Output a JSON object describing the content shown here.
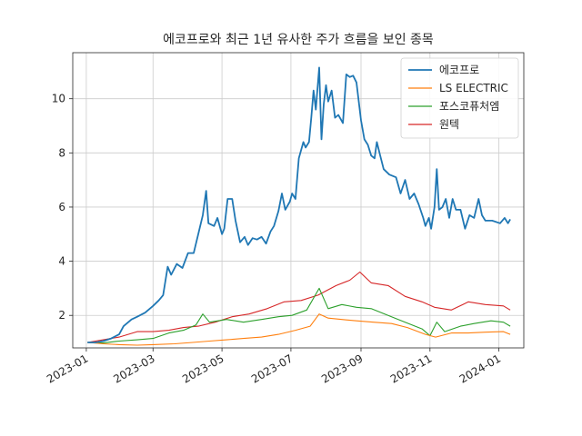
{
  "chart_data": {
    "type": "line",
    "title": "에코프로와 최근 1년 유사한 주가 흐름을 보인 종목",
    "xlabel": "",
    "ylabel": "",
    "x_tick_labels": [
      "2023-01",
      "2023-03",
      "2023-05",
      "2023-07",
      "2023-09",
      "2023-11",
      "2024-01"
    ],
    "x_ticks": [
      "2023-01-01",
      "2023-03-01",
      "2023-05-01",
      "2023-07-01",
      "2023-09-01",
      "2023-11-01",
      "2024-01-01"
    ],
    "x_range": [
      "2022-12-20",
      "2024-01-23"
    ],
    "y_ticks": [
      2,
      4,
      6,
      8,
      10
    ],
    "ylim": [
      0.8,
      11.7
    ],
    "grid": true,
    "legend_position": "top-right",
    "series": [
      {
        "name": "에코프로",
        "color": "#1f77b4",
        "points": [
          [
            "2023-01-02",
            1.0
          ],
          [
            "2023-01-09",
            1.0
          ],
          [
            "2023-01-16",
            1.05
          ],
          [
            "2023-01-23",
            1.15
          ],
          [
            "2023-01-30",
            1.3
          ],
          [
            "2023-02-03",
            1.6
          ],
          [
            "2023-02-10",
            1.85
          ],
          [
            "2023-02-15",
            1.95
          ],
          [
            "2023-02-22",
            2.1
          ],
          [
            "2023-03-01",
            2.35
          ],
          [
            "2023-03-06",
            2.55
          ],
          [
            "2023-03-10",
            2.75
          ],
          [
            "2023-03-14",
            3.8
          ],
          [
            "2023-03-17",
            3.5
          ],
          [
            "2023-03-22",
            3.9
          ],
          [
            "2023-03-27",
            3.75
          ],
          [
            "2023-04-01",
            4.3
          ],
          [
            "2023-04-06",
            4.3
          ],
          [
            "2023-04-10",
            5.0
          ],
          [
            "2023-04-14",
            5.7
          ],
          [
            "2023-04-17",
            6.6
          ],
          [
            "2023-04-19",
            5.4
          ],
          [
            "2023-04-24",
            5.3
          ],
          [
            "2023-04-27",
            5.6
          ],
          [
            "2023-05-01",
            5.0
          ],
          [
            "2023-05-03",
            5.2
          ],
          [
            "2023-05-06",
            6.3
          ],
          [
            "2023-05-10",
            6.3
          ],
          [
            "2023-05-13",
            5.5
          ],
          [
            "2023-05-17",
            4.7
          ],
          [
            "2023-05-21",
            4.9
          ],
          [
            "2023-05-24",
            4.6
          ],
          [
            "2023-05-28",
            4.85
          ],
          [
            "2023-06-01",
            4.8
          ],
          [
            "2023-06-05",
            4.9
          ],
          [
            "2023-06-09",
            4.65
          ],
          [
            "2023-06-13",
            5.1
          ],
          [
            "2023-06-16",
            5.3
          ],
          [
            "2023-06-20",
            5.85
          ],
          [
            "2023-06-23",
            6.5
          ],
          [
            "2023-06-26",
            5.9
          ],
          [
            "2023-06-30",
            6.2
          ],
          [
            "2023-07-02",
            6.5
          ],
          [
            "2023-07-05",
            6.3
          ],
          [
            "2023-07-08",
            7.8
          ],
          [
            "2023-07-12",
            8.4
          ],
          [
            "2023-07-14",
            8.2
          ],
          [
            "2023-07-17",
            8.4
          ],
          [
            "2023-07-19",
            9.3
          ],
          [
            "2023-07-21",
            10.3
          ],
          [
            "2023-07-23",
            9.6
          ],
          [
            "2023-07-26",
            11.15
          ],
          [
            "2023-07-28",
            8.5
          ],
          [
            "2023-07-30",
            9.8
          ],
          [
            "2023-08-01",
            10.5
          ],
          [
            "2023-08-03",
            9.9
          ],
          [
            "2023-08-06",
            10.3
          ],
          [
            "2023-08-09",
            9.3
          ],
          [
            "2023-08-12",
            9.4
          ],
          [
            "2023-08-16",
            9.1
          ],
          [
            "2023-08-19",
            10.9
          ],
          [
            "2023-08-22",
            10.8
          ],
          [
            "2023-08-25",
            10.85
          ],
          [
            "2023-08-28",
            10.6
          ],
          [
            "2023-09-01",
            9.2
          ],
          [
            "2023-09-04",
            8.5
          ],
          [
            "2023-09-07",
            8.3
          ],
          [
            "2023-09-10",
            7.9
          ],
          [
            "2023-09-13",
            7.8
          ],
          [
            "2023-09-15",
            8.4
          ],
          [
            "2023-09-18",
            7.9
          ],
          [
            "2023-09-21",
            7.4
          ],
          [
            "2023-09-26",
            7.2
          ],
          [
            "2023-10-02",
            7.1
          ],
          [
            "2023-10-06",
            6.5
          ],
          [
            "2023-10-10",
            7.0
          ],
          [
            "2023-10-14",
            6.3
          ],
          [
            "2023-10-18",
            6.5
          ],
          [
            "2023-10-22",
            6.1
          ],
          [
            "2023-10-26",
            5.6
          ],
          [
            "2023-10-28",
            5.3
          ],
          [
            "2023-10-31",
            5.6
          ],
          [
            "2023-11-02",
            5.2
          ],
          [
            "2023-11-05",
            6.0
          ],
          [
            "2023-11-07",
            7.4
          ],
          [
            "2023-11-09",
            5.9
          ],
          [
            "2023-11-12",
            6.0
          ],
          [
            "2023-11-15",
            6.3
          ],
          [
            "2023-11-18",
            5.6
          ],
          [
            "2023-11-21",
            6.3
          ],
          [
            "2023-11-24",
            5.9
          ],
          [
            "2023-11-28",
            5.9
          ],
          [
            "2023-12-02",
            5.2
          ],
          [
            "2023-12-06",
            5.7
          ],
          [
            "2023-12-10",
            5.6
          ],
          [
            "2023-12-14",
            6.3
          ],
          [
            "2023-12-17",
            5.7
          ],
          [
            "2023-12-20",
            5.5
          ],
          [
            "2023-12-26",
            5.5
          ],
          [
            "2024-01-02",
            5.4
          ],
          [
            "2024-01-06",
            5.6
          ],
          [
            "2024-01-09",
            5.4
          ],
          [
            "2024-01-11",
            5.55
          ]
        ]
      },
      {
        "name": "LS ELECTRIC",
        "color": "#ff7f0e",
        "points": [
          [
            "2023-01-02",
            1.0
          ],
          [
            "2023-01-16",
            0.95
          ],
          [
            "2023-01-30",
            0.92
          ],
          [
            "2023-02-15",
            0.9
          ],
          [
            "2023-03-01",
            0.92
          ],
          [
            "2023-03-20",
            0.95
          ],
          [
            "2023-04-05",
            1.0
          ],
          [
            "2023-04-20",
            1.05
          ],
          [
            "2023-05-05",
            1.1
          ],
          [
            "2023-05-20",
            1.15
          ],
          [
            "2023-06-05",
            1.2
          ],
          [
            "2023-06-20",
            1.3
          ],
          [
            "2023-07-05",
            1.45
          ],
          [
            "2023-07-18",
            1.6
          ],
          [
            "2023-07-26",
            2.05
          ],
          [
            "2023-08-03",
            1.9
          ],
          [
            "2023-08-15",
            1.85
          ],
          [
            "2023-08-28",
            1.8
          ],
          [
            "2023-09-12",
            1.75
          ],
          [
            "2023-09-28",
            1.7
          ],
          [
            "2023-10-12",
            1.55
          ],
          [
            "2023-10-28",
            1.3
          ],
          [
            "2023-11-06",
            1.2
          ],
          [
            "2023-11-20",
            1.35
          ],
          [
            "2023-12-05",
            1.35
          ],
          [
            "2023-12-20",
            1.38
          ],
          [
            "2024-01-05",
            1.4
          ],
          [
            "2024-01-11",
            1.3
          ]
        ]
      },
      {
        "name": "포스코퓨처엠",
        "color": "#2ca02c",
        "points": [
          [
            "2023-01-02",
            1.0
          ],
          [
            "2023-01-16",
            0.98
          ],
          [
            "2023-01-30",
            1.05
          ],
          [
            "2023-02-15",
            1.1
          ],
          [
            "2023-03-01",
            1.15
          ],
          [
            "2023-03-15",
            1.35
          ],
          [
            "2023-03-28",
            1.45
          ],
          [
            "2023-04-08",
            1.65
          ],
          [
            "2023-04-14",
            2.05
          ],
          [
            "2023-04-20",
            1.75
          ],
          [
            "2023-05-05",
            1.85
          ],
          [
            "2023-05-20",
            1.75
          ],
          [
            "2023-06-05",
            1.85
          ],
          [
            "2023-06-20",
            1.95
          ],
          [
            "2023-07-02",
            2.0
          ],
          [
            "2023-07-15",
            2.2
          ],
          [
            "2023-07-26",
            3.0
          ],
          [
            "2023-08-03",
            2.25
          ],
          [
            "2023-08-15",
            2.4
          ],
          [
            "2023-08-28",
            2.3
          ],
          [
            "2023-09-10",
            2.25
          ],
          [
            "2023-09-25",
            2.0
          ],
          [
            "2023-10-10",
            1.75
          ],
          [
            "2023-10-25",
            1.5
          ],
          [
            "2023-11-01",
            1.25
          ],
          [
            "2023-11-07",
            1.75
          ],
          [
            "2023-11-14",
            1.4
          ],
          [
            "2023-11-28",
            1.6
          ],
          [
            "2023-12-10",
            1.7
          ],
          [
            "2023-12-25",
            1.8
          ],
          [
            "2024-01-05",
            1.75
          ],
          [
            "2024-01-11",
            1.6
          ]
        ]
      },
      {
        "name": "원텍",
        "color": "#d62728",
        "points": [
          [
            "2023-01-02",
            1.0
          ],
          [
            "2023-01-16",
            1.1
          ],
          [
            "2023-01-30",
            1.2
          ],
          [
            "2023-02-15",
            1.4
          ],
          [
            "2023-03-01",
            1.4
          ],
          [
            "2023-03-15",
            1.45
          ],
          [
            "2023-03-28",
            1.55
          ],
          [
            "2023-04-10",
            1.6
          ],
          [
            "2023-04-25",
            1.75
          ],
          [
            "2023-05-10",
            1.95
          ],
          [
            "2023-05-25",
            2.05
          ],
          [
            "2023-06-10",
            2.25
          ],
          [
            "2023-06-25",
            2.5
          ],
          [
            "2023-07-10",
            2.55
          ],
          [
            "2023-07-25",
            2.75
          ],
          [
            "2023-08-10",
            3.1
          ],
          [
            "2023-08-22",
            3.3
          ],
          [
            "2023-08-31",
            3.6
          ],
          [
            "2023-09-10",
            3.2
          ],
          [
            "2023-09-25",
            3.1
          ],
          [
            "2023-10-10",
            2.7
          ],
          [
            "2023-10-25",
            2.5
          ],
          [
            "2023-11-05",
            2.3
          ],
          [
            "2023-11-20",
            2.2
          ],
          [
            "2023-12-05",
            2.5
          ],
          [
            "2023-12-20",
            2.4
          ],
          [
            "2024-01-05",
            2.35
          ],
          [
            "2024-01-11",
            2.2
          ]
        ]
      }
    ]
  }
}
